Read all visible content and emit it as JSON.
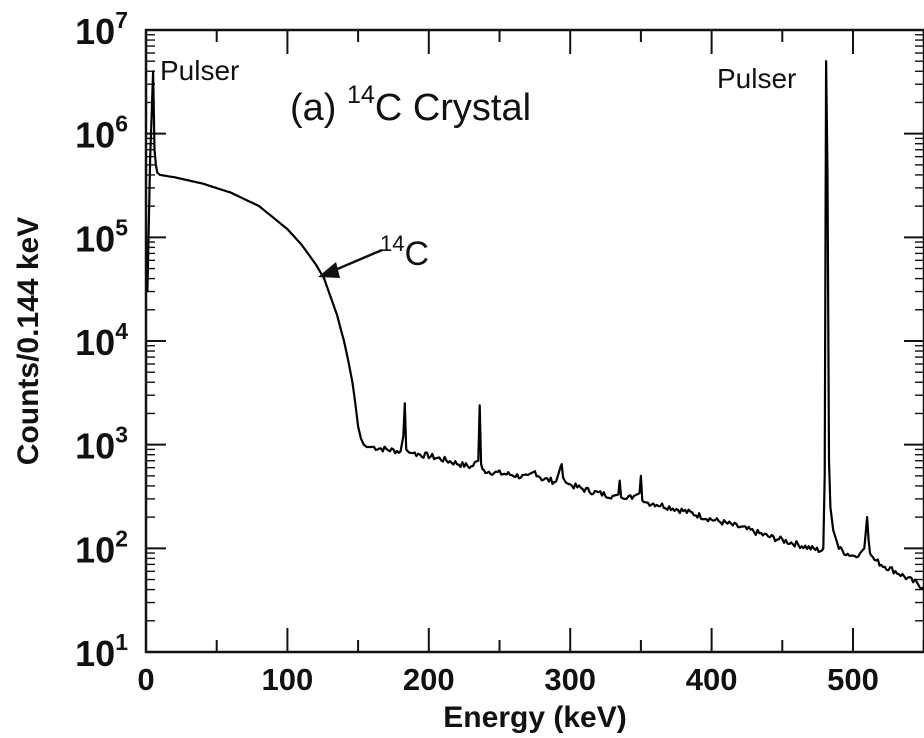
{
  "chart_data": {
    "type": "line",
    "title": "",
    "panel_label": "(a) ",
    "title_superscript": "14",
    "title_main": "C Crystal",
    "xlabel": "Energy (keV)",
    "ylabel": "Counts/0.144 keV",
    "x_scale": "linear",
    "y_scale": "log",
    "xlim": [
      0,
      550
    ],
    "ylim": [
      10,
      10000000
    ],
    "grid": false,
    "x_ticks": [
      {
        "value": 0,
        "label": "0"
      },
      {
        "value": 100,
        "label": "100"
      },
      {
        "value": 200,
        "label": "200"
      },
      {
        "value": 300,
        "label": "300"
      },
      {
        "value": 400,
        "label": "400"
      },
      {
        "value": 500,
        "label": "500"
      }
    ],
    "y_ticks": [
      {
        "value": 10,
        "base": "10",
        "exponent": "1"
      },
      {
        "value": 100,
        "base": "10",
        "exponent": "2"
      },
      {
        "value": 1000,
        "base": "10",
        "exponent": "3"
      },
      {
        "value": 10000,
        "base": "10",
        "exponent": "4"
      },
      {
        "value": 100000,
        "base": "10",
        "exponent": "5"
      },
      {
        "value": 1000000,
        "base": "10",
        "exponent": "6"
      },
      {
        "value": 10000000,
        "base": "10",
        "exponent": "7"
      }
    ],
    "annotations": [
      {
        "id": "pulser-left",
        "text": "Pulser",
        "x": 5,
        "y": 3000000
      },
      {
        "id": "pulser-right",
        "text": "Pulser",
        "x": 483,
        "y": 3000000
      },
      {
        "id": "c14-label",
        "superscript": "14",
        "text": "C",
        "x": 126,
        "y": 50000
      }
    ],
    "series": [
      {
        "color": "#000000",
        "x": [
          1,
          3,
          5,
          6,
          7,
          8,
          10,
          20,
          40,
          60,
          80,
          100,
          110,
          120,
          126,
          130,
          135,
          140,
          143,
          146,
          148,
          150,
          152,
          154,
          156,
          160,
          170,
          180,
          182,
          183,
          184,
          186,
          190,
          200,
          210,
          220,
          230,
          235,
          236,
          237,
          238,
          240,
          250,
          260,
          270,
          275,
          280,
          290,
          293,
          294,
          295,
          297,
          300,
          310,
          320,
          330,
          334,
          335,
          336,
          338,
          340,
          345,
          349,
          350,
          351,
          352,
          355,
          360,
          370,
          380,
          390,
          400,
          410,
          420,
          430,
          440,
          450,
          460,
          470,
          478,
          479,
          480,
          481,
          482,
          483,
          484,
          486,
          490,
          495,
          500,
          505,
          508,
          509,
          510,
          511,
          512,
          514,
          520,
          530,
          540,
          550
        ],
        "y": [
          30000,
          600000,
          4000000,
          700000,
          500000,
          420000,
          400000,
          380000,
          330000,
          270000,
          200000,
          120000,
          85000,
          55000,
          40000,
          28000,
          18000,
          10000,
          6500,
          4000,
          2500,
          1500,
          1150,
          1000,
          950,
          950,
          900,
          860,
          1200,
          2500,
          900,
          840,
          820,
          780,
          720,
          660,
          610,
          700,
          2400,
          650,
          580,
          560,
          530,
          510,
          480,
          550,
          470,
          440,
          600,
          650,
          480,
          430,
          410,
          370,
          340,
          320,
          330,
          450,
          310,
          300,
          300,
          320,
          340,
          500,
          290,
          280,
          275,
          270,
          250,
          230,
          210,
          190,
          175,
          160,
          145,
          130,
          120,
          110,
          100,
          95,
          100,
          500,
          5000000,
          400000,
          700,
          250,
          150,
          100,
          90,
          85,
          90,
          100,
          140,
          200,
          120,
          90,
          80,
          70,
          60,
          50,
          42
        ]
      }
    ]
  }
}
